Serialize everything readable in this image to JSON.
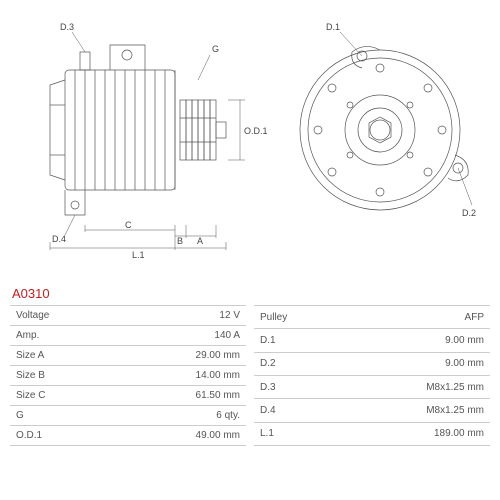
{
  "part_number": "A0310",
  "drawing": {
    "stroke": "#555555",
    "stroke_width": 0.7,
    "dim_labels_left": [
      "D.3",
      "G",
      "D.4",
      "C",
      "B",
      "A",
      "L.1",
      "O.D.1"
    ],
    "dim_labels_right": [
      "D.1",
      "D.2"
    ]
  },
  "specs_left": [
    {
      "label": "Voltage",
      "value": "12 V"
    },
    {
      "label": "Amp.",
      "value": "140 A"
    },
    {
      "label": "Size A",
      "value": "29.00 mm"
    },
    {
      "label": "Size B",
      "value": "14.00 mm"
    },
    {
      "label": "Size C",
      "value": "61.50 mm"
    },
    {
      "label": "G",
      "value": "6 qty."
    },
    {
      "label": "O.D.1",
      "value": "49.00 mm"
    }
  ],
  "specs_right": [
    {
      "label": "Pulley",
      "value": "AFP"
    },
    {
      "label": "D.1",
      "value": "9.00 mm"
    },
    {
      "label": "D.2",
      "value": "9.00 mm"
    },
    {
      "label": "D.3",
      "value": "M8x1.25 mm"
    },
    {
      "label": "D.4",
      "value": "M8x1.25 mm"
    },
    {
      "label": "L.1",
      "value": "189.00 mm"
    }
  ],
  "table_style": {
    "border_color": "#cccccc",
    "text_color": "#555555",
    "font_size": 10
  }
}
